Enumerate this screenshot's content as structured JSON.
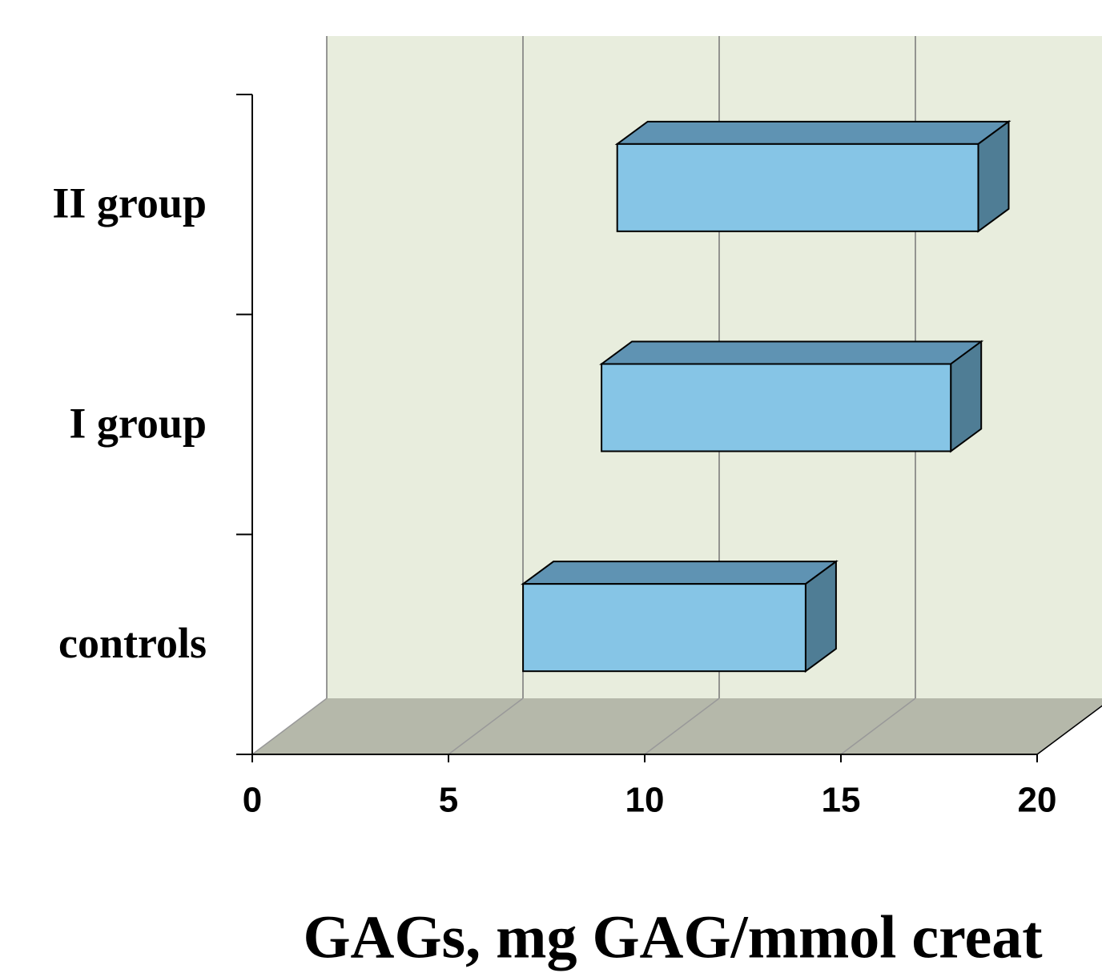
{
  "chart_data": {
    "type": "floating-bar",
    "x_label": "GAGs, mg GAG/mmol creat",
    "categories": [
      "controls",
      "I group",
      "II group"
    ],
    "values": [
      [
        6.9,
        14.1
      ],
      [
        8.9,
        17.8
      ],
      [
        9.3,
        18.5
      ]
    ],
    "color": "#86c5e6",
    "xlim": [
      0,
      20
    ],
    "xticks": [
      0,
      5,
      10,
      15,
      20
    ],
    "grid": true
  }
}
